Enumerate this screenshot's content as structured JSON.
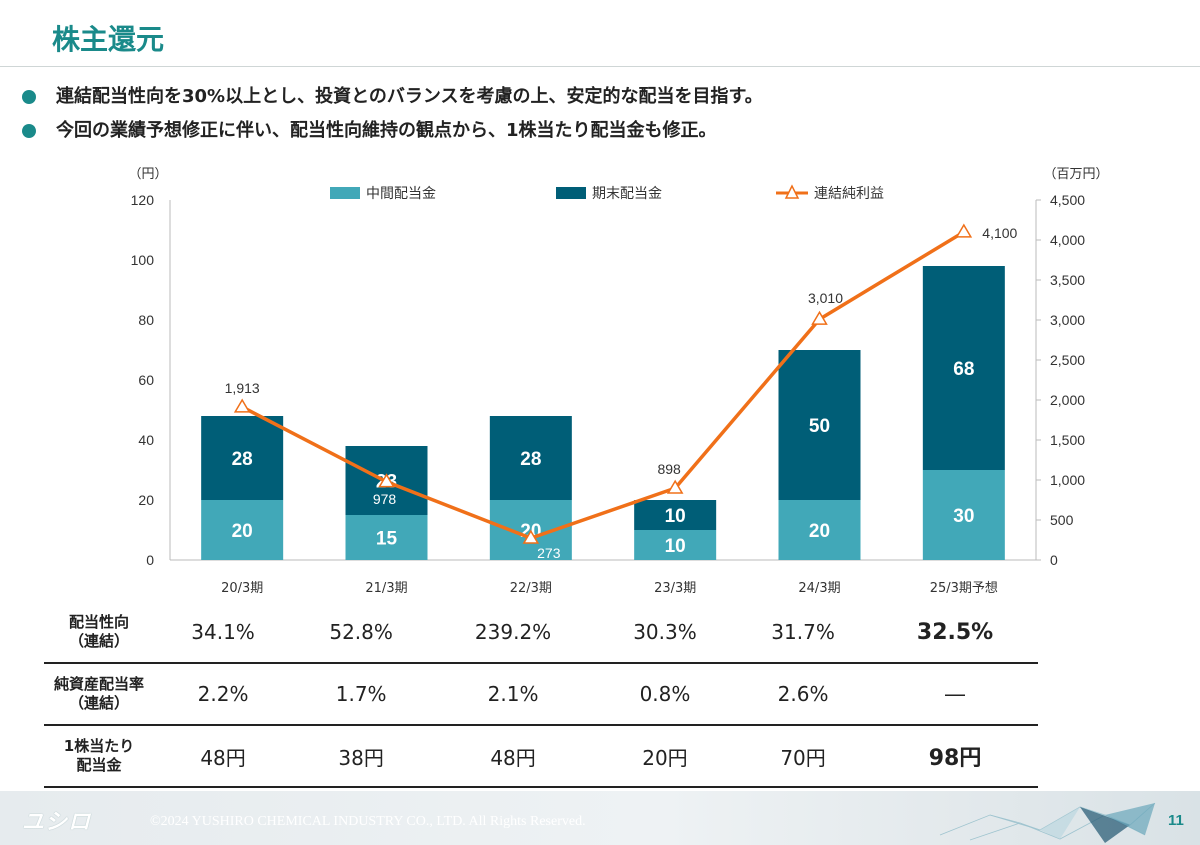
{
  "page": {
    "title": "株主還元",
    "bullets": [
      "連結配当性向を30%以上とし、投資とのバランスを考慮の上、安定的な配当を目指す。",
      "今回の業績予想修正に伴い、配当性向維持の観点から、1株当たり配当金も修正。"
    ],
    "page_number": "11"
  },
  "chart_data": {
    "type": "bar",
    "stacked": true,
    "categories": [
      "20/3期",
      "21/3期",
      "22/3期",
      "23/3期",
      "24/3期",
      "25/3期予想"
    ],
    "left_axis": {
      "unit_label": "（円）",
      "ylim": [
        0,
        120
      ],
      "ticks": [
        "0",
        "20",
        "40",
        "60",
        "80",
        "100",
        "120"
      ]
    },
    "right_axis": {
      "unit_label": "（百万円）",
      "ylim": [
        0,
        4500
      ],
      "ticks": [
        "0",
        "500",
        "1,000",
        "1,500",
        "2,000",
        "2,500",
        "3,000",
        "3,500",
        "4,000",
        "4,500"
      ]
    },
    "legend_position": "top",
    "series": [
      {
        "name": "中間配当金",
        "kind": "bar",
        "axis": "left",
        "color": "#41a8b8",
        "values": [
          20,
          15,
          20,
          10,
          20,
          30
        ]
      },
      {
        "name": "期末配当金",
        "kind": "bar",
        "axis": "left",
        "color": "#005e77",
        "values": [
          28,
          23,
          28,
          10,
          50,
          68
        ]
      },
      {
        "name": "連結純利益",
        "kind": "line",
        "axis": "right",
        "color": "#f07019",
        "values": [
          1913,
          978,
          273,
          898,
          3010,
          4100
        ],
        "labels": [
          "1,913",
          "978",
          "273",
          "898",
          "3,010",
          "4,100"
        ]
      }
    ]
  },
  "table": {
    "rows": [
      {
        "header": [
          "配当性向",
          "（連結）"
        ],
        "values": [
          "34.1%",
          "52.8%",
          "239.2%",
          "30.3%",
          "31.7%",
          "32.5%"
        ]
      },
      {
        "header": [
          "純資産配当率",
          "（連結）"
        ],
        "values": [
          "2.2%",
          "1.7%",
          "2.1%",
          "0.8%",
          "2.6%",
          "―"
        ]
      },
      {
        "header": [
          "1株当たり",
          "配当金"
        ],
        "values": [
          "48円",
          "38円",
          "48円",
          "20円",
          "70円",
          "98円"
        ]
      }
    ]
  },
  "footer": {
    "logo_text": "ユシロ",
    "copyright": "©2024 YUSHIRO CHEMICAL INDUSTRY CO., LTD. All Rights Reserved."
  }
}
